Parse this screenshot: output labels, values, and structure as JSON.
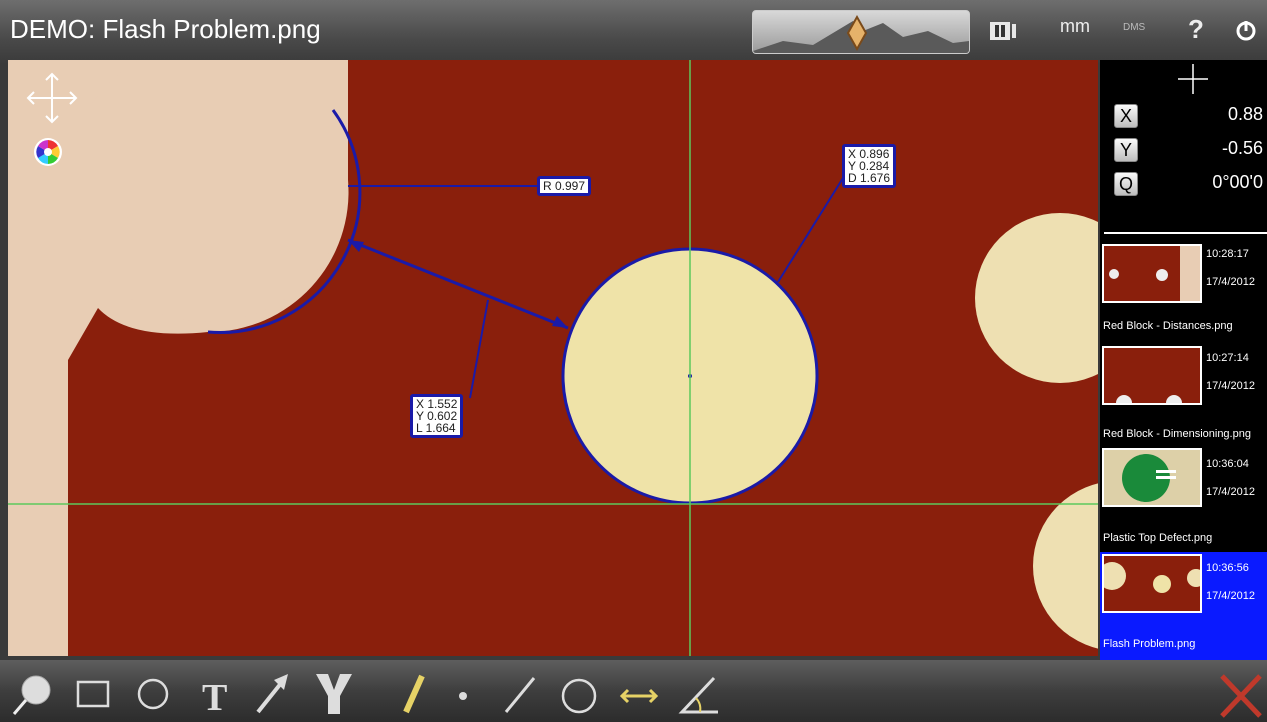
{
  "window": {
    "title": "DEMO: Flash Problem.png"
  },
  "toolbar": {
    "units_label": "mm",
    "angle_format_label": "DMS",
    "help_label": "?"
  },
  "measurements": {
    "radius_label": "R 0.997",
    "circle_label": "X 0.896\nY 0.284\nD 1.676",
    "distance_label": "X 1.552\nY 0.602\nL 1.664"
  },
  "readout": {
    "x_button": "X",
    "x_value": "0.88",
    "y_button": "Y",
    "y_value": "-0.56",
    "q_button": "Q",
    "q_value": "0°00'0"
  },
  "history": [
    {
      "time": "10:28:17",
      "date": "17/4/2012",
      "name": "Red Block - Distances.png",
      "selected": false
    },
    {
      "time": "10:27:14",
      "date": "17/4/2012",
      "name": "Red Block - Dimensioning.png",
      "selected": false
    },
    {
      "time": "10:36:04",
      "date": "17/4/2012",
      "name": "Plastic Top Defect.png",
      "selected": false
    },
    {
      "time": "10:36:56",
      "date": "17/4/2012",
      "name": "Flash Problem.png",
      "selected": true
    }
  ],
  "colors": {
    "selection": "#0a1aff",
    "overlay_line": "#1a1aa8",
    "crosshair": "#5cc95c",
    "close_x": "#c0392b"
  },
  "bottom_tools": [
    "magnifier-icon",
    "rectangle-select-icon",
    "circle-select-icon",
    "text-icon",
    "arrow-icon",
    "fork-icon",
    "ruler-icon",
    "point-icon",
    "line-icon",
    "circle-icon",
    "distance-icon",
    "angle-icon",
    "close-icon"
  ]
}
